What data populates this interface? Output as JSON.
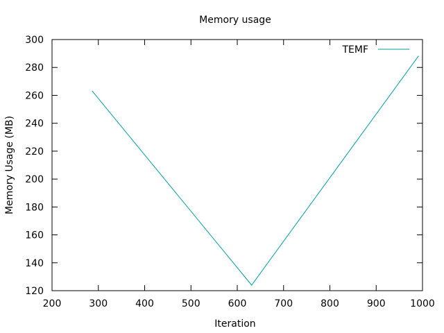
{
  "chart_data": {
    "type": "line",
    "title": "Memory usage",
    "xlabel": "Iteration",
    "ylabel": "Memory Usage (MB)",
    "xlim": [
      200,
      1000
    ],
    "ylim": [
      120,
      300
    ],
    "xticks": [
      200,
      300,
      400,
      500,
      600,
      700,
      800,
      900,
      1000
    ],
    "yticks": [
      120,
      140,
      160,
      180,
      200,
      220,
      240,
      260,
      280,
      300
    ],
    "grid": false,
    "legend_position": "top-right",
    "series": [
      {
        "name": "TEMF",
        "color": "#009e9e",
        "x": [
          287,
          631,
          991
        ],
        "y": [
          263,
          124,
          288
        ]
      }
    ]
  }
}
